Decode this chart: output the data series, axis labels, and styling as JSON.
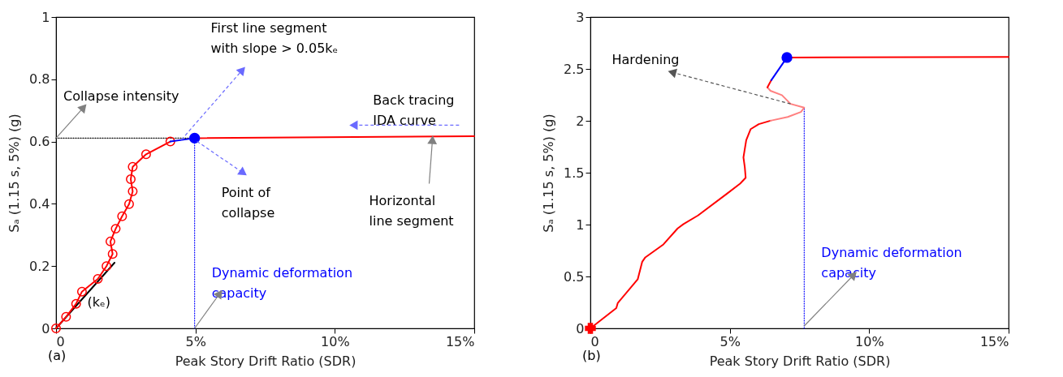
{
  "chart_data": [
    {
      "type": "line",
      "xlabel": "Peak Story Drift Ratio (SDR)",
      "ylabel": "Sₐ (1.15 s, 5%) (g)",
      "xlim": [
        0,
        15
      ],
      "ylim": [
        0,
        1
      ],
      "xticks": [
        0,
        {
          "value": 5,
          "label": "5%"
        },
        {
          "value": 10,
          "label": "10%"
        },
        {
          "value": 15,
          "label": "15%"
        }
      ],
      "yticks": [
        0,
        0.2,
        0.4,
        0.6,
        0.8,
        1
      ],
      "grid": false,
      "series": [
        {
          "color": "#000000",
          "x": [
            0,
            2.1
          ],
          "values": [
            0,
            0.211
          ]
        },
        {
          "color": "#000000",
          "line_style": "dotted",
          "x": [
            0,
            4.97
          ],
          "values": [
            0.611,
            0.611
          ]
        },
        {
          "color": "#0000ff",
          "line_style": "dotted",
          "x": [
            4.97,
            4.97
          ],
          "values": [
            0,
            0.611
          ]
        },
        {
          "color": "#ff0000",
          "marker": "circle",
          "x": [
            0,
            0.36,
            0.72,
            0.93,
            1.5,
            1.81,
            2.03,
            1.95,
            2.14,
            2.37,
            2.62,
            2.75,
            2.68,
            2.75,
            3.23,
            4.1
          ],
          "values": [
            0,
            0.037,
            0.079,
            0.118,
            0.159,
            0.2,
            0.239,
            0.279,
            0.32,
            0.36,
            0.399,
            0.44,
            0.479,
            0.519,
            0.559,
            0.6
          ]
        },
        {
          "color": "#ff0000",
          "x": [
            4.97,
            15
          ],
          "values": [
            0.611,
            0.617
          ]
        },
        {
          "color": "#0000ff",
          "x": [
            4.1,
            4.97
          ],
          "values": [
            0.6,
            0.611
          ]
        },
        {
          "type": "scatter",
          "color": "#0000ff",
          "marker": "circle",
          "x": [
            4.97
          ],
          "values": [
            0.611
          ]
        }
      ],
      "annotations": [
        {
          "text": "Collapse intensity",
          "x": 0,
          "y": 0.611
        },
        {
          "text": "First line segment\nwith slope > 0.05kₑ",
          "x": 4.5,
          "y": 0.606
        },
        {
          "text": "Point of\ncollapse",
          "x": 4.97,
          "y": 0.611
        },
        {
          "text": "Dynamic deformation\ncapacity",
          "x": 4.97,
          "y": 0
        },
        {
          "text": "Back tracing\nIDA curve",
          "x": 13,
          "y": 0.616
        },
        {
          "text": "Horizontal\nline segment",
          "x": 13.5,
          "y": 0.616
        },
        {
          "text": "(kₑ)",
          "x": 1.5,
          "y": 0.152
        },
        "(a)"
      ]
    },
    {
      "type": "line",
      "xlabel": "Peak Story Drift Ratio (SDR)",
      "ylabel": "Sₐ (1.15 s, 5%) (g)",
      "xlim": [
        0,
        15
      ],
      "ylim": [
        0,
        3
      ],
      "xticks": [
        0,
        {
          "value": 5,
          "label": "5%"
        },
        {
          "value": 10,
          "label": "10%"
        },
        {
          "value": 15,
          "label": "15%"
        }
      ],
      "yticks": [
        0,
        0.5,
        1,
        1.5,
        2,
        2.5,
        3
      ],
      "grid": false,
      "series": [
        {
          "color": "#0000ff",
          "line_style": "dotted",
          "x": [
            7.67,
            7.67
          ],
          "values": [
            0,
            2.127
          ]
        },
        {
          "color": "#ff0000",
          "x": [
            0,
            0.93,
            0.98,
            1.7,
            1.86,
            1.97,
            2.62,
            3.13,
            3.34,
            3.86,
            4.9,
            5.37,
            5.57,
            5.54,
            5.49,
            5.59,
            5.75,
            6.04,
            6.46
          ],
          "values": [
            0,
            0.195,
            0.243,
            0.474,
            0.642,
            0.684,
            0.809,
            0.963,
            1.005,
            1.088,
            1.298,
            1.395,
            1.451,
            1.549,
            1.647,
            1.814,
            1.92,
            1.968,
            2.001
          ]
        },
        {
          "color": "#ff8080",
          "x": [
            6.46,
            7.08,
            7.55,
            7.67,
            7.18,
            6.87,
            6.46,
            6.35
          ],
          "values": [
            2.001,
            2.037,
            2.085,
            2.127,
            2.163,
            2.247,
            2.289,
            2.322
          ]
        },
        {
          "color": "#ff0000",
          "x": [
            6.35,
            6.49
          ],
          "values": [
            2.322,
            2.392
          ]
        },
        {
          "color": "#0000ff",
          "x": [
            6.49,
            7.05
          ],
          "values": [
            2.392,
            2.61
          ]
        },
        {
          "color": "#ff0000",
          "x": [
            7.05,
            15
          ],
          "values": [
            2.61,
            2.615
          ]
        },
        {
          "type": "scatter",
          "color": "#0000ff",
          "marker": "circle",
          "x": [
            7.05
          ],
          "values": [
            2.61
          ]
        },
        {
          "type": "scatter",
          "color": "#ff0000",
          "marker": "cross",
          "x": [
            0
          ],
          "values": [
            0
          ]
        }
      ],
      "annotations": [
        {
          "text": "Hardening",
          "x": 7.18,
          "y": 2.163
        },
        {
          "text": "Dynamic deformation\ncapacity",
          "x": 7.67,
          "y": 0
        },
        "(b)"
      ]
    }
  ]
}
